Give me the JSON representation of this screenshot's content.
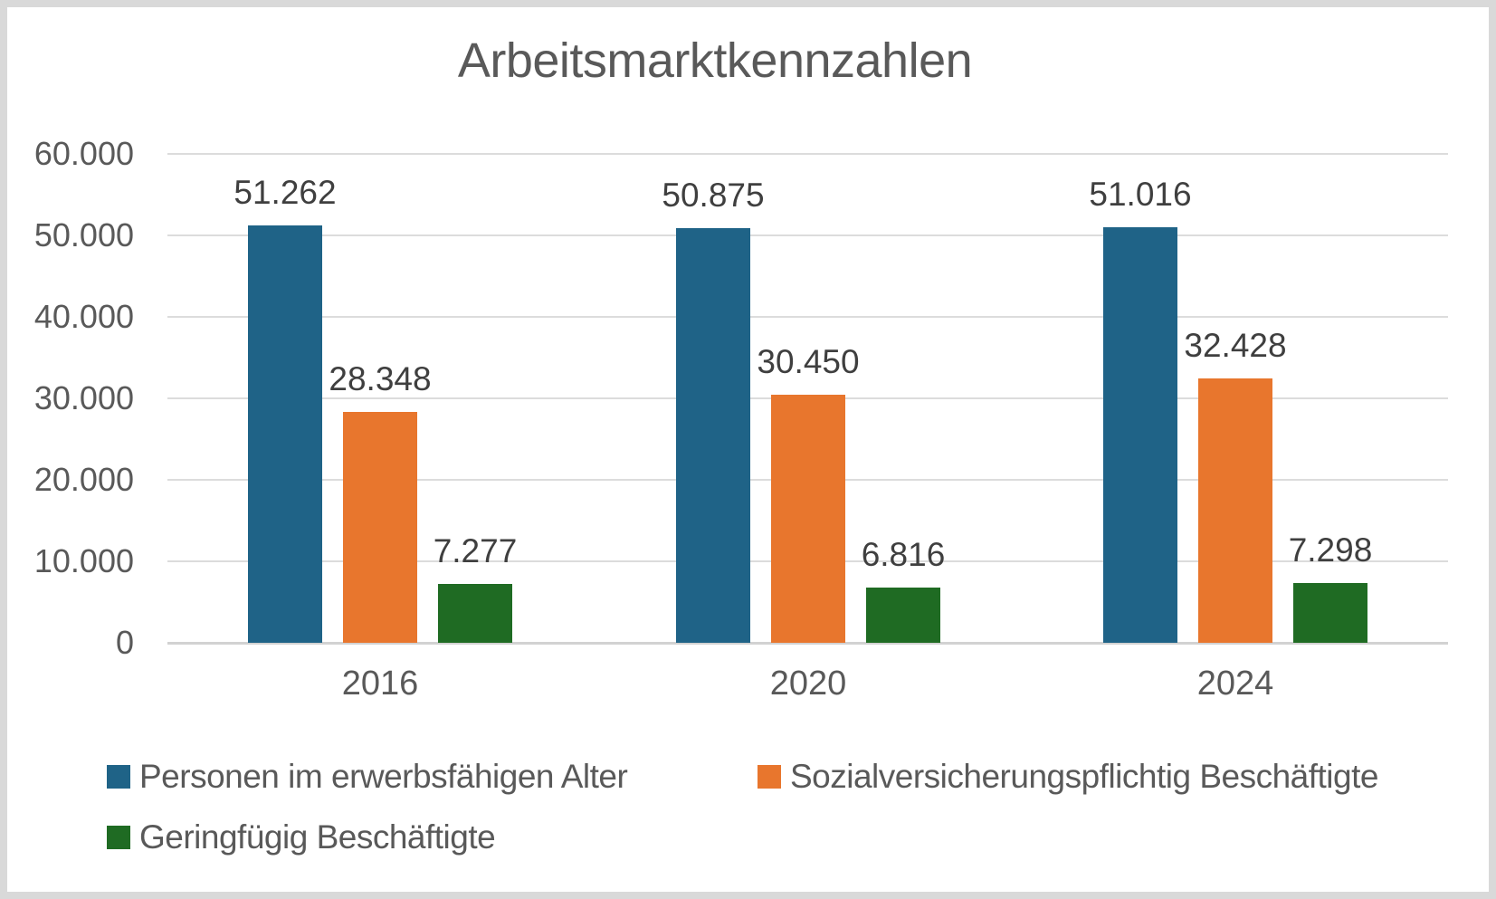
{
  "frame": {
    "border_color": "#d9d9d9",
    "background_color": "#ffffff"
  },
  "chart_data": {
    "type": "bar",
    "title": "Arbeitsmarktkennzahlen",
    "categories": [
      "2016",
      "2020",
      "2024"
    ],
    "series": [
      {
        "name": "Personen im erwerbsfähigen Alter",
        "color": "#1f6387",
        "values": [
          51262,
          50875,
          51016
        ],
        "labels": [
          "51.262",
          "50.875",
          "51.016"
        ]
      },
      {
        "name": "Sozialversicherungspflichtig Beschäftigte",
        "color": "#e8762d",
        "values": [
          28348,
          30450,
          32428
        ],
        "labels": [
          "28.348",
          "30.450",
          "32.428"
        ]
      },
      {
        "name": "Geringfügig Beschäftigte",
        "color": "#1f6b23",
        "values": [
          7277,
          6816,
          7298
        ],
        "labels": [
          "7.277",
          "6.816",
          "7.298"
        ]
      }
    ],
    "y_axis": {
      "min": 0,
      "max": 60000,
      "step": 10000,
      "tick_labels": [
        "0",
        "10.000",
        "20.000",
        "30.000",
        "40.000",
        "50.000",
        "60.000"
      ]
    },
    "xlabel": "",
    "ylabel": "",
    "grid": true,
    "data_labels": true,
    "legend_position": "bottom",
    "text_colors": {
      "title": "#595959",
      "ticks": "#595959",
      "data_labels": "#3f3f3f"
    }
  }
}
